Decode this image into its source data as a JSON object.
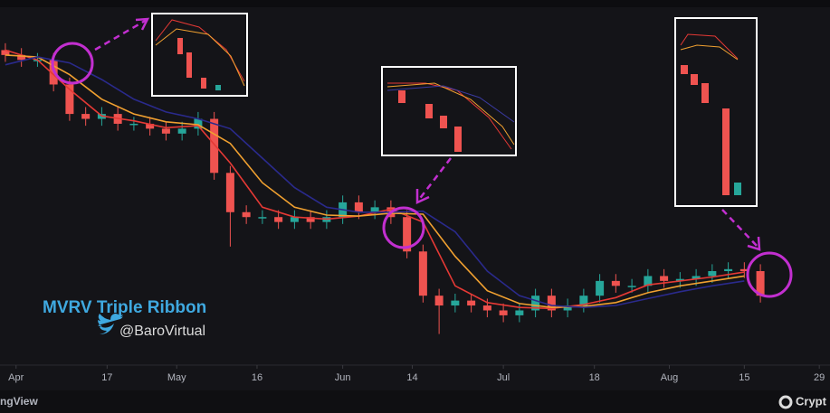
{
  "chart_data": {
    "type": "candlestick",
    "title": "MVRV Triple Ribbon",
    "subtitle": "@BaroVirtual",
    "x": [
      -2,
      1,
      4,
      7,
      10,
      13,
      16,
      19,
      22,
      25,
      28,
      31,
      34,
      37,
      40,
      43,
      46,
      49,
      52,
      55,
      58,
      61,
      64,
      67,
      70,
      73,
      76,
      79,
      82,
      85,
      88,
      91,
      94,
      97,
      100,
      103,
      106,
      109,
      112,
      115,
      118,
      121,
      124,
      127,
      130,
      133,
      136,
      139
    ],
    "open": [
      46500,
      46000,
      45500,
      45500,
      43000,
      40000,
      39500,
      40000,
      39000,
      39000,
      38500,
      38000,
      38500,
      39500,
      34000,
      30000,
      29500,
      29500,
      29000,
      29500,
      29000,
      29500,
      31000,
      30000,
      30500,
      29500,
      26000,
      21500,
      20500,
      21000,
      20500,
      20000,
      19500,
      20000,
      21500,
      20000,
      20500,
      21500,
      23000,
      22500,
      22500,
      23500,
      23000,
      23200,
      23500,
      24000,
      24200,
      24000
    ],
    "high": [
      47200,
      46700,
      46200,
      46200,
      43700,
      40700,
      40700,
      40700,
      39700,
      39700,
      39200,
      39200,
      40200,
      40200,
      34700,
      30700,
      30200,
      30200,
      30200,
      30200,
      30200,
      31700,
      31700,
      31200,
      31200,
      30200,
      26700,
      22200,
      21700,
      21700,
      21200,
      20700,
      20700,
      22200,
      22200,
      21200,
      22200,
      23700,
      23700,
      23200,
      24200,
      24200,
      23900,
      24200,
      24700,
      24900,
      24900,
      24700
    ],
    "low": [
      45300,
      44800,
      44800,
      42300,
      39300,
      38800,
      38800,
      38300,
      38300,
      37800,
      37300,
      37300,
      37800,
      33300,
      26500,
      28800,
      28800,
      28300,
      28300,
      28300,
      28300,
      28800,
      29300,
      29300,
      28800,
      25300,
      20800,
      17600,
      19800,
      19800,
      19300,
      18800,
      18800,
      19300,
      19300,
      19300,
      19800,
      20800,
      21800,
      21800,
      21800,
      22300,
      22300,
      22500,
      22800,
      23300,
      23300,
      20800
    ],
    "close": [
      46000,
      45500,
      45500,
      43000,
      40000,
      39500,
      40000,
      39000,
      39000,
      38500,
      38000,
      38500,
      39500,
      34000,
      30000,
      29500,
      29500,
      29000,
      29500,
      29000,
      29500,
      31000,
      30000,
      30500,
      29500,
      26000,
      21500,
      20500,
      21000,
      20500,
      20000,
      19500,
      20000,
      21500,
      20000,
      20500,
      21500,
      23000,
      22500,
      22500,
      23500,
      23000,
      23200,
      23500,
      24000,
      24200,
      24000,
      21500
    ],
    "up_color": "#26a69a",
    "down_color": "#ef5350",
    "ribbon": {
      "x": [
        -2,
        4,
        10,
        16,
        22,
        28,
        34,
        40,
        46,
        52,
        58,
        64,
        70,
        76,
        82,
        88,
        94,
        100,
        106,
        112,
        118,
        124,
        130,
        136
      ],
      "series": [
        {
          "color": "#e53935",
          "values": [
            46500,
            45500,
            42500,
            39800,
            39300,
            38600,
            38800,
            35000,
            30500,
            29500,
            29300,
            29600,
            30300,
            29000,
            22500,
            20800,
            20300,
            20200,
            20600,
            21300,
            22600,
            23000,
            23400,
            23900
          ]
        },
        {
          "color": "#f0a030",
          "values": [
            46000,
            45800,
            44000,
            41500,
            40000,
            39200,
            38900,
            37000,
            33000,
            30500,
            29700,
            29600,
            29900,
            29800,
            25500,
            22000,
            20700,
            20300,
            20400,
            20800,
            21800,
            22500,
            23000,
            23500
          ]
        },
        {
          "color": "#2a2a8c",
          "values": [
            45000,
            45800,
            45200,
            43500,
            41500,
            40200,
            39500,
            38500,
            35500,
            32500,
            30500,
            30000,
            30000,
            30100,
            28000,
            24000,
            21500,
            20500,
            20300,
            20500,
            21200,
            21900,
            22500,
            23000
          ]
        }
      ]
    },
    "xlim": [
      -3,
      152
    ],
    "xticks": [
      {
        "value": 0,
        "label": "Apr"
      },
      17,
      {
        "value": 30,
        "label": "May"
      },
      {
        "value": 45,
        "label": "16"
      },
      {
        "value": 61,
        "label": "Jun"
      },
      {
        "value": 74,
        "label": "14"
      },
      {
        "value": 91,
        "label": "Jul"
      },
      {
        "value": 108,
        "label": "18"
      },
      {
        "value": 122,
        "label": "Aug"
      },
      {
        "value": 136,
        "label": "15"
      },
      {
        "value": 150,
        "label": "29"
      }
    ],
    "ylim": [
      14800,
      51600
    ]
  },
  "footer": {
    "left": "ngView",
    "right": "Crypt"
  }
}
